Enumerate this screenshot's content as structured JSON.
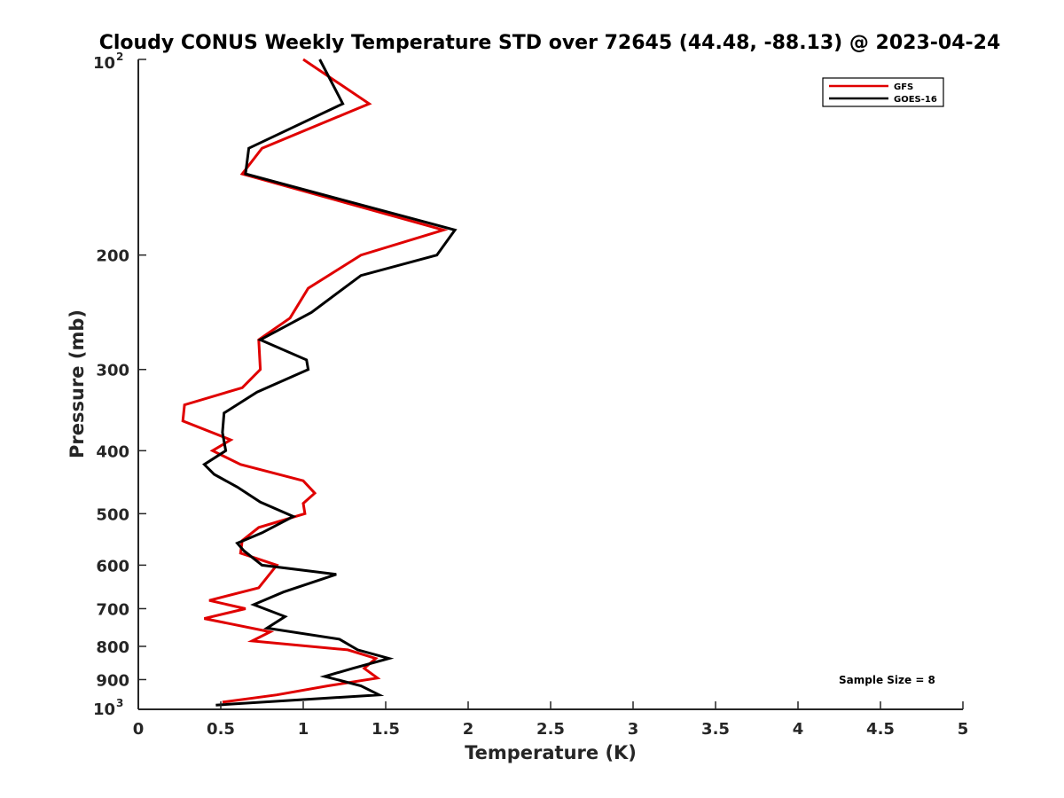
{
  "chart_data": {
    "type": "line",
    "title": "Cloudy CONUS Weekly Temperature STD over 72645 (44.48, -88.13) @ 2023-04-24",
    "xlabel": "Temperature (K)",
    "ylabel": "Pressure (mb)",
    "xlim": [
      0,
      5
    ],
    "ylim": [
      1000,
      100
    ],
    "y_scale": "log",
    "y_reversed": true,
    "grid": false,
    "legend_position": "top-right",
    "x_ticks": [
      "0",
      "0.5",
      "1",
      "1.5",
      "2",
      "2.5",
      "3",
      "3.5",
      "4",
      "4.5",
      "5"
    ],
    "y_ticks": [
      {
        "value": 100,
        "base": "10",
        "exp": "2"
      },
      {
        "value": 200,
        "label": "200"
      },
      {
        "value": 300,
        "label": "300"
      },
      {
        "value": 400,
        "label": "400"
      },
      {
        "value": 500,
        "label": "500"
      },
      {
        "value": 600,
        "label": "600"
      },
      {
        "value": 700,
        "label": "700"
      },
      {
        "value": 800,
        "label": "800"
      },
      {
        "value": 900,
        "label": "900"
      },
      {
        "value": 1000,
        "base": "10",
        "exp": "3"
      }
    ],
    "annotation": "Sample Size = 8",
    "series": [
      {
        "name": "GFS",
        "color": "#e00000",
        "points": [
          [
            1.0,
            100
          ],
          [
            1.4,
            117
          ],
          [
            0.75,
            137
          ],
          [
            0.63,
            150
          ],
          [
            1.85,
            183
          ],
          [
            1.35,
            200
          ],
          [
            1.03,
            225
          ],
          [
            0.92,
            250
          ],
          [
            0.73,
            270
          ],
          [
            0.74,
            300
          ],
          [
            0.63,
            320
          ],
          [
            0.28,
            340
          ],
          [
            0.27,
            360
          ],
          [
            0.56,
            385
          ],
          [
            0.45,
            400
          ],
          [
            0.62,
            420
          ],
          [
            1.0,
            445
          ],
          [
            1.07,
            465
          ],
          [
            1.0,
            482
          ],
          [
            1.01,
            500
          ],
          [
            0.73,
            525
          ],
          [
            0.63,
            550
          ],
          [
            0.62,
            575
          ],
          [
            0.84,
            600
          ],
          [
            0.73,
            650
          ],
          [
            0.43,
            680
          ],
          [
            0.65,
            700
          ],
          [
            0.4,
            725
          ],
          [
            0.8,
            760
          ],
          [
            0.69,
            785
          ],
          [
            1.27,
            810
          ],
          [
            1.44,
            835
          ],
          [
            1.37,
            865
          ],
          [
            1.45,
            895
          ],
          [
            1.15,
            920
          ],
          [
            0.84,
            950
          ],
          [
            0.51,
            975
          ]
        ]
      },
      {
        "name": "GOES-16",
        "color": "#000000",
        "points": [
          [
            1.1,
            100
          ],
          [
            1.24,
            117
          ],
          [
            0.67,
            137
          ],
          [
            0.65,
            150
          ],
          [
            1.92,
            183
          ],
          [
            1.81,
            200
          ],
          [
            1.35,
            215
          ],
          [
            1.05,
            245
          ],
          [
            0.74,
            270
          ],
          [
            1.02,
            290
          ],
          [
            1.03,
            300
          ],
          [
            0.72,
            325
          ],
          [
            0.52,
            350
          ],
          [
            0.51,
            375
          ],
          [
            0.53,
            400
          ],
          [
            0.4,
            420
          ],
          [
            0.46,
            435
          ],
          [
            0.6,
            455
          ],
          [
            0.74,
            480
          ],
          [
            0.94,
            505
          ],
          [
            0.75,
            535
          ],
          [
            0.6,
            555
          ],
          [
            0.64,
            570
          ],
          [
            0.75,
            600
          ],
          [
            1.2,
            620
          ],
          [
            0.88,
            660
          ],
          [
            0.7,
            690
          ],
          [
            0.89,
            720
          ],
          [
            0.78,
            750
          ],
          [
            1.22,
            780
          ],
          [
            1.33,
            810
          ],
          [
            1.52,
            835
          ],
          [
            1.3,
            865
          ],
          [
            1.13,
            890
          ],
          [
            1.35,
            920
          ],
          [
            1.46,
            950
          ],
          [
            0.47,
            985
          ]
        ]
      }
    ]
  }
}
